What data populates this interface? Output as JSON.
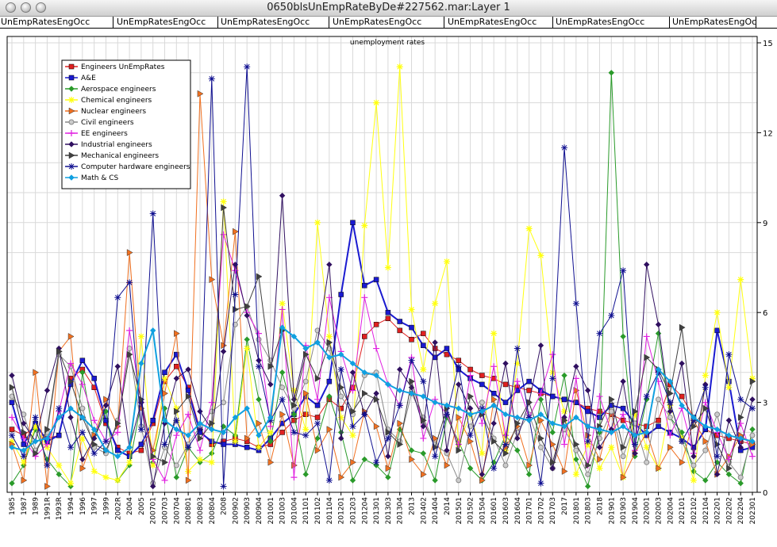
{
  "window": {
    "title": "0650blsUnEmpRateByDe#227562.mar:Layer 1"
  },
  "header": {
    "cells": [
      "UnEmpRatesEngOcc",
      "UnEmpRatesEngOcc",
      "UnEmpRatesEngOcc",
      "UnEmpRatesEngOcc",
      "UnEmpRatesEngOcc",
      "UnEmpRatesEngOcc",
      "UnEmpRatesEngOcc"
    ]
  },
  "chart_data": {
    "type": "line",
    "title": "unemployment rates",
    "xlabel": "",
    "ylabel": "",
    "ylim": [
      0,
      15
    ],
    "y_ticks": [
      0,
      3,
      6,
      9,
      12,
      15
    ],
    "y_axis_side": "right",
    "grid": true,
    "legend_placement": "top-left",
    "categories": [
      "1985",
      "1987",
      "1989",
      "1991R",
      "1993R",
      "1994",
      "1996",
      "1997",
      "1999",
      "2002R",
      "2004",
      "2005",
      "200701",
      "200703",
      "200704",
      "200801",
      "200803",
      "200804",
      "2008",
      "200902",
      "200903",
      "200904",
      "201001",
      "201003",
      "201004",
      "201101",
      "201102",
      "201104",
      "201201",
      "201203",
      "201204",
      "201301",
      "201303",
      "201304",
      "2013",
      "201402",
      "201404",
      "2014",
      "201501",
      "201502",
      "201504",
      "201601",
      "201603",
      "201604",
      "201701",
      "201702",
      "201703",
      "2017",
      "201801",
      "201803",
      "2018",
      "201901",
      "201903",
      "201904",
      "202001",
      "202003",
      "202004",
      "202101",
      "202102",
      "202104",
      "202201",
      "202202",
      "202204",
      "202301"
    ],
    "series": [
      {
        "name": "Engineers UnEmpRates",
        "color": "#e02020",
        "marker": "square",
        "values": [
          2.1,
          1.9,
          2.2,
          1.8,
          1.9,
          3.8,
          4.1,
          3.5,
          2.3,
          1.5,
          1.3,
          1.4,
          2.3,
          3.7,
          4.2,
          3.5,
          2.1,
          1.6,
          1.7,
          1.8,
          1.7,
          1.5,
          1.6,
          2.0,
          2.4,
          2.6,
          2.5,
          3.1,
          2.8,
          3.5,
          5.2,
          5.6,
          5.8,
          5.4,
          5.1,
          5.3,
          4.8,
          4.6,
          4.4,
          4.1,
          3.9,
          3.8,
          3.6,
          3.5,
          3.4,
          3.3,
          3.2,
          3.1,
          3.0,
          2.8,
          2.7,
          2.6,
          2.4,
          2.3,
          2.2,
          2.4,
          3.6,
          3.2,
          2.5,
          2.1,
          1.9,
          1.8,
          1.7,
          1.6
        ]
      },
      {
        "name": "A&E",
        "color": "#1a1ad0",
        "marker": "square",
        "values": [
          3.0,
          1.6,
          2.3,
          1.7,
          1.9,
          3.6,
          4.4,
          3.8,
          2.4,
          1.4,
          1.2,
          1.6,
          2.4,
          4.0,
          4.6,
          3.4,
          2.0,
          1.7,
          1.6,
          1.6,
          1.5,
          1.4,
          1.8,
          2.3,
          2.6,
          3.2,
          2.9,
          3.7,
          6.6,
          9.0,
          6.9,
          7.1,
          6.0,
          5.7,
          5.5,
          4.9,
          4.5,
          4.8,
          4.1,
          3.8,
          3.6,
          3.3,
          3.0,
          3.4,
          3.7,
          3.4,
          3.2,
          3.1,
          3.0,
          2.7,
          2.5,
          2.9,
          2.8,
          2.3,
          1.9,
          2.2,
          2.0,
          1.8,
          1.5,
          2.1,
          5.4,
          3.7,
          1.4,
          1.5
        ]
      },
      {
        "name": "Aerospace engineers",
        "color": "#2a9a2a",
        "marker": "diamond",
        "values": [
          0.3,
          0.9,
          2.1,
          1.1,
          0.6,
          0.2,
          4.0,
          1.8,
          2.7,
          0.4,
          0.9,
          3.0,
          1.0,
          2.8,
          0.5,
          1.5,
          1.0,
          1.3,
          2.2,
          1.9,
          5.1,
          3.1,
          1.7,
          4.0,
          2.6,
          0.6,
          1.8,
          3.2,
          2.0,
          0.4,
          1.1,
          0.9,
          0.5,
          2.1,
          1.4,
          1.3,
          0.4,
          2.5,
          1.7,
          0.8,
          0.4,
          1.0,
          1.9,
          1.4,
          0.6,
          3.1,
          2.0,
          3.9,
          1.1,
          0.2,
          2.0,
          14.0,
          5.2,
          1.2,
          3.1,
          5.3,
          2.5,
          2.0,
          0.7,
          0.4,
          1.0,
          0.6,
          0.3,
          2.1
        ]
      },
      {
        "name": "Chemical engineers",
        "color": "#ffff10",
        "marker": "star",
        "values": [
          1.7,
          1.0,
          2.2,
          1.5,
          0.9,
          0.3,
          1.8,
          0.7,
          0.5,
          0.4,
          1.0,
          5.2,
          0.9,
          3.8,
          2.8,
          0.7,
          1.1,
          1.0,
          9.7,
          1.7,
          4.8,
          1.5,
          2.0,
          6.3,
          3.4,
          2.1,
          9.0,
          5.2,
          2.5,
          1.9,
          8.9,
          13.0,
          7.5,
          14.2,
          6.1,
          4.1,
          6.3,
          7.7,
          1.6,
          2.6,
          1.3,
          5.3,
          1.4,
          4.3,
          8.8,
          7.9,
          4.0,
          2.7,
          0.6,
          1.6,
          0.8,
          1.5,
          0.5,
          2.6,
          1.5,
          0.8,
          2.9,
          1.8,
          0.4,
          3.9,
          6.0,
          3.5,
          7.1,
          3.8
        ]
      },
      {
        "name": "Nuclear engineers",
        "color": "#f07020",
        "marker": "triangle-right",
        "values": [
          1.6,
          0.4,
          4.0,
          0.2,
          4.7,
          5.2,
          0.8,
          1.9,
          3.1,
          2.2,
          8.0,
          2.8,
          1.4,
          3.3,
          5.3,
          0.4,
          13.3,
          7.1,
          4.9,
          8.7,
          1.8,
          2.3,
          1.0,
          2.6,
          0.9,
          3.3,
          1.4,
          2.1,
          0.5,
          1.0,
          2.7,
          2.2,
          0.8,
          2.3,
          1.1,
          0.6,
          1.8,
          0.9,
          2.5,
          1.7,
          0.4,
          3.1,
          1.5,
          2.2,
          0.9,
          2.4,
          1.6,
          0.7,
          3.4,
          1.9,
          1.1,
          2.7,
          0.5,
          1.3,
          2.0,
          0.8,
          1.5,
          1.0,
          2.4,
          1.7,
          0.6,
          1.2,
          1.9,
          1.6
        ]
      },
      {
        "name": "Civil engineers",
        "color": "#888888",
        "marker": "circle",
        "values": [
          3.2,
          2.6,
          1.4,
          2.0,
          4.6,
          4.2,
          2.8,
          1.5,
          1.3,
          2.4,
          4.8,
          2.2,
          0.3,
          1.5,
          0.9,
          1.6,
          2.2,
          2.7,
          3.0,
          5.6,
          6.2,
          5.1,
          4.4,
          3.5,
          2.8,
          3.7,
          5.4,
          4.8,
          3.2,
          2.6,
          3.9,
          4.0,
          2.1,
          1.7,
          3.3,
          2.5,
          1.6,
          1.3,
          0.4,
          2.2,
          3.0,
          1.8,
          0.9,
          2.0,
          2.6,
          1.5,
          0.8,
          2.1,
          1.4,
          0.6,
          1.8,
          2.7,
          1.2,
          2.3,
          1.0,
          3.1,
          2.5,
          1.7,
          0.9,
          1.4,
          2.6,
          1.0,
          0.5,
          1.9
        ]
      },
      {
        "name": "EE engineers",
        "color": "#e020e0",
        "marker": "plus",
        "values": [
          2.5,
          1.8,
          1.2,
          1.6,
          2.7,
          4.3,
          3.6,
          2.4,
          1.7,
          2.0,
          5.4,
          3.0,
          1.1,
          0.4,
          1.9,
          2.6,
          1.4,
          3.0,
          8.6,
          7.4,
          6.0,
          5.3,
          2.2,
          6.1,
          0.5,
          4.9,
          3.1,
          6.5,
          4.7,
          3.4,
          6.5,
          4.8,
          3.6,
          2.9,
          4.5,
          1.8,
          3.1,
          2.6,
          1.6,
          3.9,
          2.3,
          4.2,
          1.9,
          3.7,
          2.5,
          3.3,
          4.6,
          1.6,
          3.8,
          0.9,
          3.2,
          2.0,
          2.6,
          1.4,
          5.2,
          3.7,
          1.9,
          2.8,
          1.3,
          3.0,
          2.0,
          1.1,
          2.3,
          1.2
        ]
      },
      {
        "name": "Industrial engineers",
        "color": "#301060",
        "marker": "diamond",
        "values": [
          3.9,
          2.3,
          1.7,
          3.4,
          4.8,
          2.5,
          1.1,
          1.8,
          2.9,
          4.2,
          1.5,
          3.0,
          0.2,
          2.3,
          3.8,
          4.1,
          2.7,
          2.1,
          4.7,
          7.6,
          5.9,
          4.4,
          3.6,
          9.9,
          3.1,
          4.8,
          5.0,
          7.6,
          1.8,
          4.0,
          2.6,
          3.3,
          1.2,
          4.1,
          3.5,
          2.2,
          5.0,
          1.4,
          3.6,
          2.8,
          0.6,
          2.3,
          4.3,
          1.8,
          3.0,
          4.9,
          0.8,
          2.5,
          4.2,
          3.4,
          1.5,
          2.1,
          3.7,
          1.3,
          7.6,
          5.6,
          2.7,
          4.3,
          1.2,
          3.6,
          0.6,
          2.4,
          1.5,
          3.1
        ]
      },
      {
        "name": "Mechanical engineers",
        "color": "#404040",
        "marker": "triangle-right",
        "values": [
          3.5,
          2.0,
          1.3,
          2.1,
          4.7,
          3.7,
          2.5,
          1.6,
          1.4,
          2.3,
          4.6,
          3.1,
          1.2,
          1.0,
          2.7,
          3.2,
          1.8,
          2.3,
          9.5,
          6.1,
          6.2,
          7.2,
          4.2,
          5.4,
          2.9,
          4.6,
          3.8,
          5.0,
          3.5,
          2.7,
          3.3,
          3.1,
          2.0,
          1.6,
          3.7,
          2.4,
          1.5,
          2.8,
          1.4,
          3.2,
          2.6,
          1.7,
          1.3,
          2.3,
          3.0,
          1.8,
          1.0,
          2.4,
          1.6,
          0.9,
          2.2,
          3.1,
          1.5,
          2.7,
          4.5,
          4.1,
          3.3,
          5.5,
          2.2,
          2.8,
          1.6,
          0.8,
          2.5,
          3.7
        ]
      },
      {
        "name": "Computer hardware engineers",
        "color": "#101090",
        "marker": "asterisk",
        "values": [
          1.9,
          1.2,
          2.5,
          0.9,
          2.8,
          1.5,
          2.0,
          1.3,
          1.7,
          6.5,
          7.0,
          2.1,
          9.3,
          1.6,
          2.4,
          1.5,
          2.1,
          13.8,
          0.2,
          6.6,
          14.2,
          4.2,
          2.4,
          3.1,
          2.0,
          1.9,
          2.3,
          0.4,
          4.1,
          2.2,
          2.6,
          1.0,
          1.8,
          2.9,
          4.4,
          3.7,
          1.2,
          2.6,
          4.2,
          1.9,
          2.8,
          0.8,
          1.6,
          4.8,
          2.5,
          0.3,
          3.8,
          11.5,
          6.3,
          1.7,
          5.3,
          5.9,
          7.4,
          1.6,
          3.2,
          4.0,
          3.0,
          1.7,
          2.4,
          3.5,
          1.2,
          4.6,
          3.1,
          2.8
        ]
      },
      {
        "name": "Math & CS",
        "color": "#10a0e0",
        "marker": "diamond",
        "values": [
          1.5,
          1.4,
          1.7,
          1.8,
          2.5,
          2.8,
          2.5,
          2.1,
          1.4,
          1.2,
          1.5,
          4.3,
          5.4,
          2.4,
          2.1,
          1.9,
          2.3,
          2.1,
          2.0,
          2.5,
          2.8,
          1.9,
          2.5,
          5.5,
          5.2,
          4.8,
          5.0,
          4.5,
          4.6,
          4.3,
          4.0,
          3.9,
          3.6,
          3.4,
          3.3,
          3.2,
          3.0,
          2.9,
          2.8,
          2.6,
          2.7,
          2.9,
          2.6,
          2.5,
          2.4,
          2.6,
          2.3,
          2.2,
          2.5,
          2.2,
          2.1,
          2.0,
          2.2,
          1.9,
          2.0,
          4.1,
          3.7,
          2.9,
          2.5,
          2.2,
          2.1,
          1.9,
          1.8,
          1.7
        ]
      }
    ]
  }
}
